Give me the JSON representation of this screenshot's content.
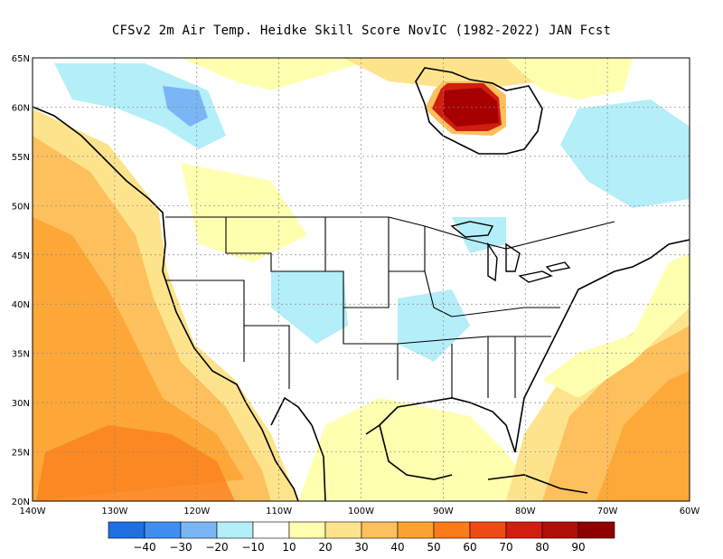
{
  "title": "CFSv2  2m Air Temp. Heidke Skill Score NovIC (1982-2022) JAN Fcst",
  "axes": {
    "lat_labels": [
      "65N",
      "60N",
      "55N",
      "50N",
      "45N",
      "40N",
      "35N",
      "30N",
      "25N",
      "20N"
    ],
    "lon_labels": [
      "140W",
      "130W",
      "120W",
      "110W",
      "100W",
      "90W",
      "80W",
      "70W",
      "60W"
    ]
  },
  "colorbar": {
    "colors": [
      "#1f6fe0",
      "#3f8ff0",
      "#7ab6f5",
      "#b4eef8",
      "#ffffff",
      "#ffffb0",
      "#fde48c",
      "#fdc05c",
      "#fca231",
      "#fb7a1a",
      "#f04a14",
      "#d21e0e",
      "#b01008",
      "#8f0000"
    ],
    "labels": [
      "−40",
      "−30",
      "−20",
      "−10",
      "10",
      "20",
      "30",
      "40",
      "50",
      "60",
      "70",
      "80",
      "90"
    ]
  }
}
